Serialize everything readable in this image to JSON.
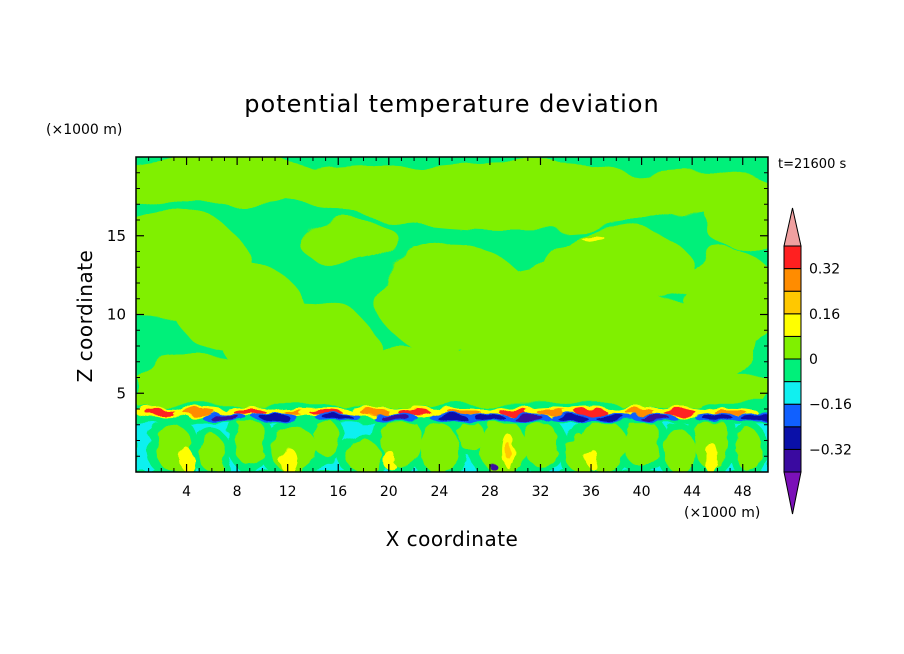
{
  "chart_data": {
    "type": "heatmap",
    "title": "potential temperature deviation",
    "time_label": "t=21600 s",
    "xlabel": "X coordinate",
    "ylabel": "Z coordinate",
    "x_unit": "(×1000 m)",
    "y_unit": "(×1000 m)",
    "xlim": [
      0,
      50
    ],
    "ylim": [
      0,
      20
    ],
    "x_ticks": [
      4,
      8,
      12,
      16,
      20,
      24,
      28,
      32,
      36,
      40,
      44,
      48
    ],
    "y_ticks": [
      5,
      10,
      15
    ],
    "colorbar": {
      "levels": [
        -0.48,
        -0.4,
        -0.32,
        -0.24,
        -0.16,
        -0.08,
        0,
        0.08,
        0.16,
        0.24,
        0.32,
        0.4,
        0.48
      ],
      "labeled_levels": [
        0.32,
        0.16,
        0,
        -0.16,
        -0.32
      ],
      "colors": [
        "#7b10b8",
        "#3a0aa0",
        "#0a10a8",
        "#1060ff",
        "#10f0f0",
        "#00f07a",
        "#80f000",
        "#ffff00",
        "#ffc800",
        "#ff8c00",
        "#ff2020",
        "#f0a0a0"
      ],
      "extend": "both"
    },
    "structure": {
      "upper_layer": "values mostly between -0.08 and 0.08 (green and light green) above about 4.5 km",
      "inversion_band": "strong alternating positive/negative deviations near z of about 3.2-4 km",
      "boundary_layer": "values mostly between -0.16 and 0.16 below about 3 km with convective plumes"
    }
  }
}
